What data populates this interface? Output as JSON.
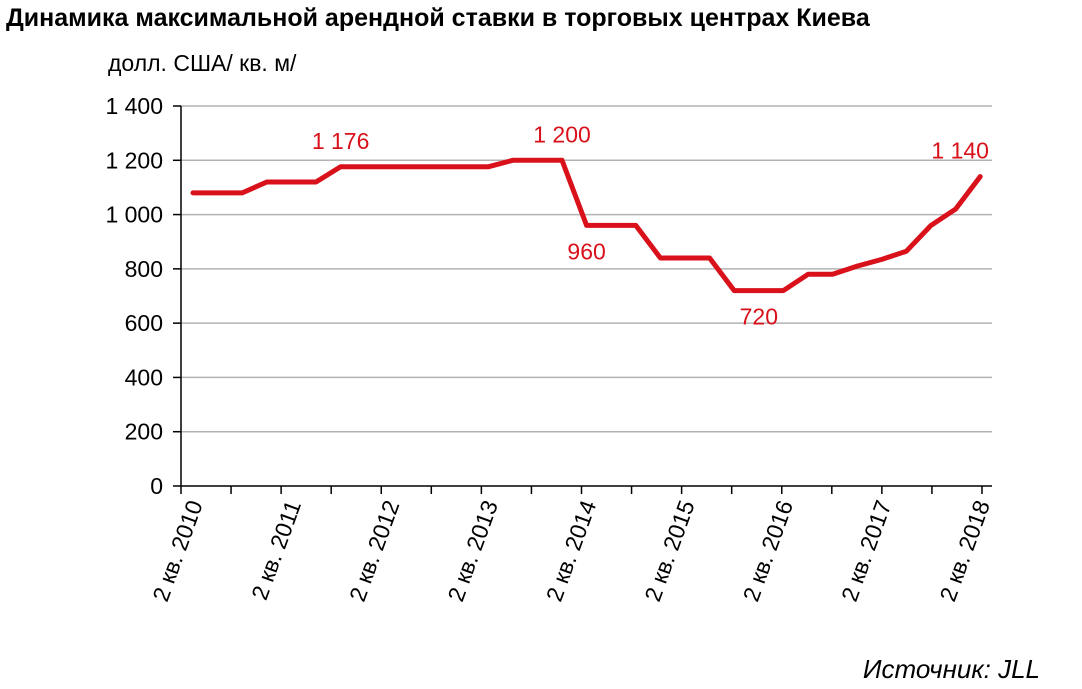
{
  "title": "Динамика максимальной арендной ставки в торговых центрах Киева",
  "unit_label": "долл. США/ кв. м/",
  "source": "Источник: JLL",
  "colors": {
    "series": "#d9111b",
    "grid": "#b3b3b3",
    "axis": "#000000"
  },
  "chart_data": {
    "type": "line",
    "title": "Динамика максимальной арендной ставки в торговых центрах Киева",
    "ylabel": "долл. США/ кв. м/",
    "xlabel": "",
    "ylim": [
      0,
      1400
    ],
    "yticks": [
      0,
      200,
      400,
      600,
      800,
      1000,
      1200,
      1400
    ],
    "ytick_labels": [
      "0",
      "200",
      "400",
      "600",
      "800",
      "1 000",
      "1 200",
      "1 400"
    ],
    "grid": true,
    "x_tick_labels": [
      "2 кв. 2010",
      "2 кв. 2011",
      "2 кв. 2012",
      "2 кв. 2013",
      "2 кв. 2014",
      "2 кв. 2015",
      "2 кв. 2016",
      "2 кв. 2017",
      "2 кв. 2018"
    ],
    "series": [
      {
        "values": [
          1080,
          1080,
          1080,
          1120,
          1120,
          1120,
          1176,
          1176,
          1176,
          1176,
          1176,
          1176,
          1176,
          1200,
          1200,
          1200,
          960,
          960,
          960,
          840,
          840,
          840,
          720,
          720,
          720,
          780,
          780,
          810,
          835,
          865,
          960,
          1020,
          1140
        ]
      }
    ],
    "annotations": [
      {
        "index": 6,
        "text": "1 176",
        "position": "above"
      },
      {
        "index": 15,
        "text": "1 200",
        "position": "above"
      },
      {
        "index": 16,
        "text": "960",
        "position": "below"
      },
      {
        "index": 23,
        "text": "720",
        "position": "below"
      },
      {
        "index": 32,
        "text": "1 140",
        "position": "above"
      }
    ]
  }
}
